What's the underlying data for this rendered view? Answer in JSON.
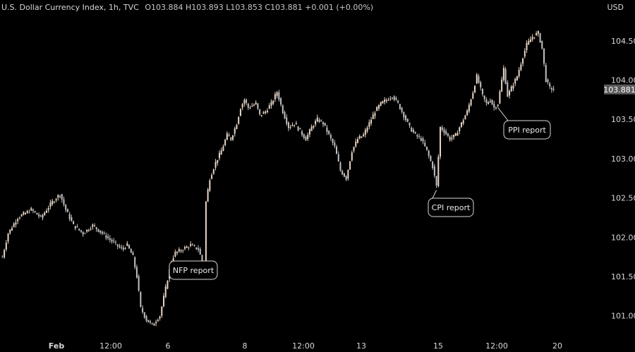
{
  "header": {
    "symbol": "U.S. Dollar Currency Index, 1h, TVC",
    "o_label": "O",
    "o": "103.884",
    "h_label": "H",
    "h": "103.893",
    "l_label": "L",
    "l": "103.853",
    "c_label": "C",
    "c": "103.881",
    "change": "+0.001 (+0.00%)"
  },
  "axis": {
    "currency": "USD"
  },
  "price_tag": "103.881",
  "colors": {
    "background": "#000000",
    "up": "#e8d6c6",
    "down": "#c2c2c2",
    "text": "#d9d9d9",
    "tag_bg": "#5a5a5a"
  },
  "chart_data": {
    "type": "candlestick",
    "title": "U.S. Dollar Currency Index, 1h, TVC",
    "y_unit": "USD",
    "ylim": [
      100.8,
      104.75
    ],
    "yticks": [
      "101.000",
      "101.500",
      "102.000",
      "102.500",
      "103.000",
      "103.500",
      "104.000",
      "104.500"
    ],
    "xticks": [
      "Feb",
      "12:00",
      "6",
      "8",
      "12:00",
      "13",
      "15",
      "12:00",
      "20"
    ],
    "grid": false,
    "last_price": 103.881,
    "path": [
      [
        0,
        101.75
      ],
      [
        3,
        102.05
      ],
      [
        8,
        102.25
      ],
      [
        15,
        102.35
      ],
      [
        20,
        102.25
      ],
      [
        26,
        102.45
      ],
      [
        30,
        102.55
      ],
      [
        33,
        102.35
      ],
      [
        37,
        102.15
      ],
      [
        42,
        102.05
      ],
      [
        47,
        102.15
      ],
      [
        52,
        102.05
      ],
      [
        57,
        101.95
      ],
      [
        62,
        101.85
      ],
      [
        65,
        101.9
      ],
      [
        68,
        101.75
      ],
      [
        70,
        101.5
      ],
      [
        72,
        101.1
      ],
      [
        75,
        100.95
      ],
      [
        78,
        100.88
      ],
      [
        82,
        101.0
      ],
      [
        85,
        101.35
      ],
      [
        88,
        101.7
      ],
      [
        90,
        101.8
      ],
      [
        94,
        101.85
      ],
      [
        98,
        101.9
      ],
      [
        102,
        101.85
      ],
      [
        105,
        101.62
      ],
      [
        106,
        102.45
      ],
      [
        108,
        102.75
      ],
      [
        111,
        102.95
      ],
      [
        114,
        103.1
      ],
      [
        117,
        103.3
      ],
      [
        119,
        103.25
      ],
      [
        122,
        103.45
      ],
      [
        124,
        103.65
      ],
      [
        126,
        103.75
      ],
      [
        128,
        103.65
      ],
      [
        132,
        103.7
      ],
      [
        134,
        103.55
      ],
      [
        137,
        103.6
      ],
      [
        140,
        103.7
      ],
      [
        143,
        103.85
      ],
      [
        146,
        103.6
      ],
      [
        149,
        103.4
      ],
      [
        152,
        103.45
      ],
      [
        155,
        103.35
      ],
      [
        158,
        103.25
      ],
      [
        161,
        103.4
      ],
      [
        164,
        103.5
      ],
      [
        167,
        103.45
      ],
      [
        170,
        103.3
      ],
      [
        173,
        103.15
      ],
      [
        176,
        102.85
      ],
      [
        179,
        102.75
      ],
      [
        182,
        103.1
      ],
      [
        185,
        103.25
      ],
      [
        188,
        103.3
      ],
      [
        191,
        103.45
      ],
      [
        194,
        103.6
      ],
      [
        197,
        103.7
      ],
      [
        200,
        103.75
      ],
      [
        203,
        103.8
      ],
      [
        206,
        103.7
      ],
      [
        209,
        103.55
      ],
      [
        212,
        103.4
      ],
      [
        215,
        103.3
      ],
      [
        218,
        103.25
      ],
      [
        221,
        103.1
      ],
      [
        224,
        102.9
      ],
      [
        226,
        102.65
      ],
      [
        228,
        103.4
      ],
      [
        230,
        103.35
      ],
      [
        233,
        103.25
      ],
      [
        236,
        103.3
      ],
      [
        239,
        103.45
      ],
      [
        242,
        103.6
      ],
      [
        245,
        103.85
      ],
      [
        247,
        104.05
      ],
      [
        250,
        103.8
      ],
      [
        252,
        103.7
      ],
      [
        254,
        103.75
      ],
      [
        256,
        103.65
      ],
      [
        258,
        103.7
      ],
      [
        261,
        104.15
      ],
      [
        263,
        103.8
      ],
      [
        266,
        103.95
      ],
      [
        268,
        104.05
      ],
      [
        271,
        104.3
      ],
      [
        273,
        104.45
      ],
      [
        276,
        104.55
      ],
      [
        279,
        104.6
      ],
      [
        281,
        104.4
      ],
      [
        283,
        104.0
      ],
      [
        285,
        103.9
      ],
      [
        287,
        103.881
      ]
    ],
    "annotations": [
      {
        "text": "NFP report",
        "x": 105,
        "y": 101.6
      },
      {
        "text": "CPI report",
        "x": 226,
        "y": 102.6
      },
      {
        "text": "PPI report",
        "x": 258,
        "y": 103.65
      }
    ]
  }
}
